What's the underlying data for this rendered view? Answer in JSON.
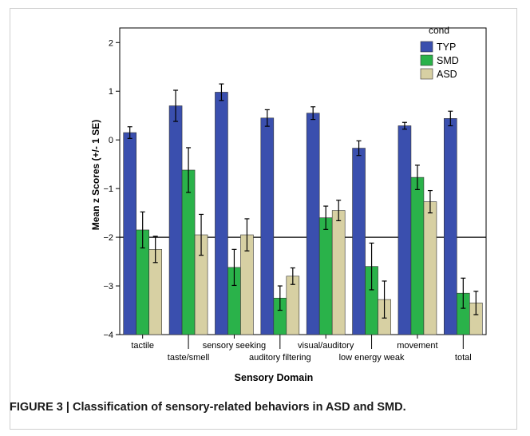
{
  "figure": {
    "caption": "FIGURE 3 | Classification of sensory-related behaviors in ASD and SMD."
  },
  "chart_data": {
    "type": "bar",
    "xlabel": "Sensory Domain",
    "ylabel": "Mean z Scores (+/- 1 SE)",
    "ylim": [
      -4,
      2.3
    ],
    "yticks": [
      -4,
      -3,
      -2,
      -1,
      0,
      1,
      2
    ],
    "reference_line": -2,
    "legend_title": "cond",
    "legend_position": "top-right",
    "grid": false,
    "categories": [
      "tactile",
      "taste/smell",
      "sensory seeking",
      "auditory filtering",
      "visual/auditory",
      "low energy weak",
      "movement",
      "total"
    ],
    "category_label_row": [
      0,
      1,
      0,
      1,
      0,
      1,
      0,
      1
    ],
    "series": [
      {
        "name": "TYP",
        "color": "#3a4fae",
        "values": [
          0.15,
          0.7,
          0.98,
          0.45,
          0.55,
          -0.17,
          0.29,
          0.44
        ],
        "se": [
          0.12,
          0.32,
          0.17,
          0.17,
          0.13,
          0.15,
          0.07,
          0.15
        ]
      },
      {
        "name": "SMD",
        "color": "#2ab24a",
        "values": [
          -1.85,
          -0.62,
          -2.62,
          -3.25,
          -1.6,
          -2.6,
          -0.77,
          -3.15
        ],
        "se": [
          0.37,
          0.46,
          0.37,
          0.25,
          0.24,
          0.48,
          0.25,
          0.31
        ]
      },
      {
        "name": "ASD",
        "color": "#d7d0a3",
        "values": [
          -2.25,
          -1.95,
          -1.95,
          -2.8,
          -1.45,
          -3.28,
          -1.27,
          -3.35
        ],
        "se": [
          0.27,
          0.42,
          0.33,
          0.17,
          0.21,
          0.38,
          0.23,
          0.24
        ]
      }
    ]
  }
}
